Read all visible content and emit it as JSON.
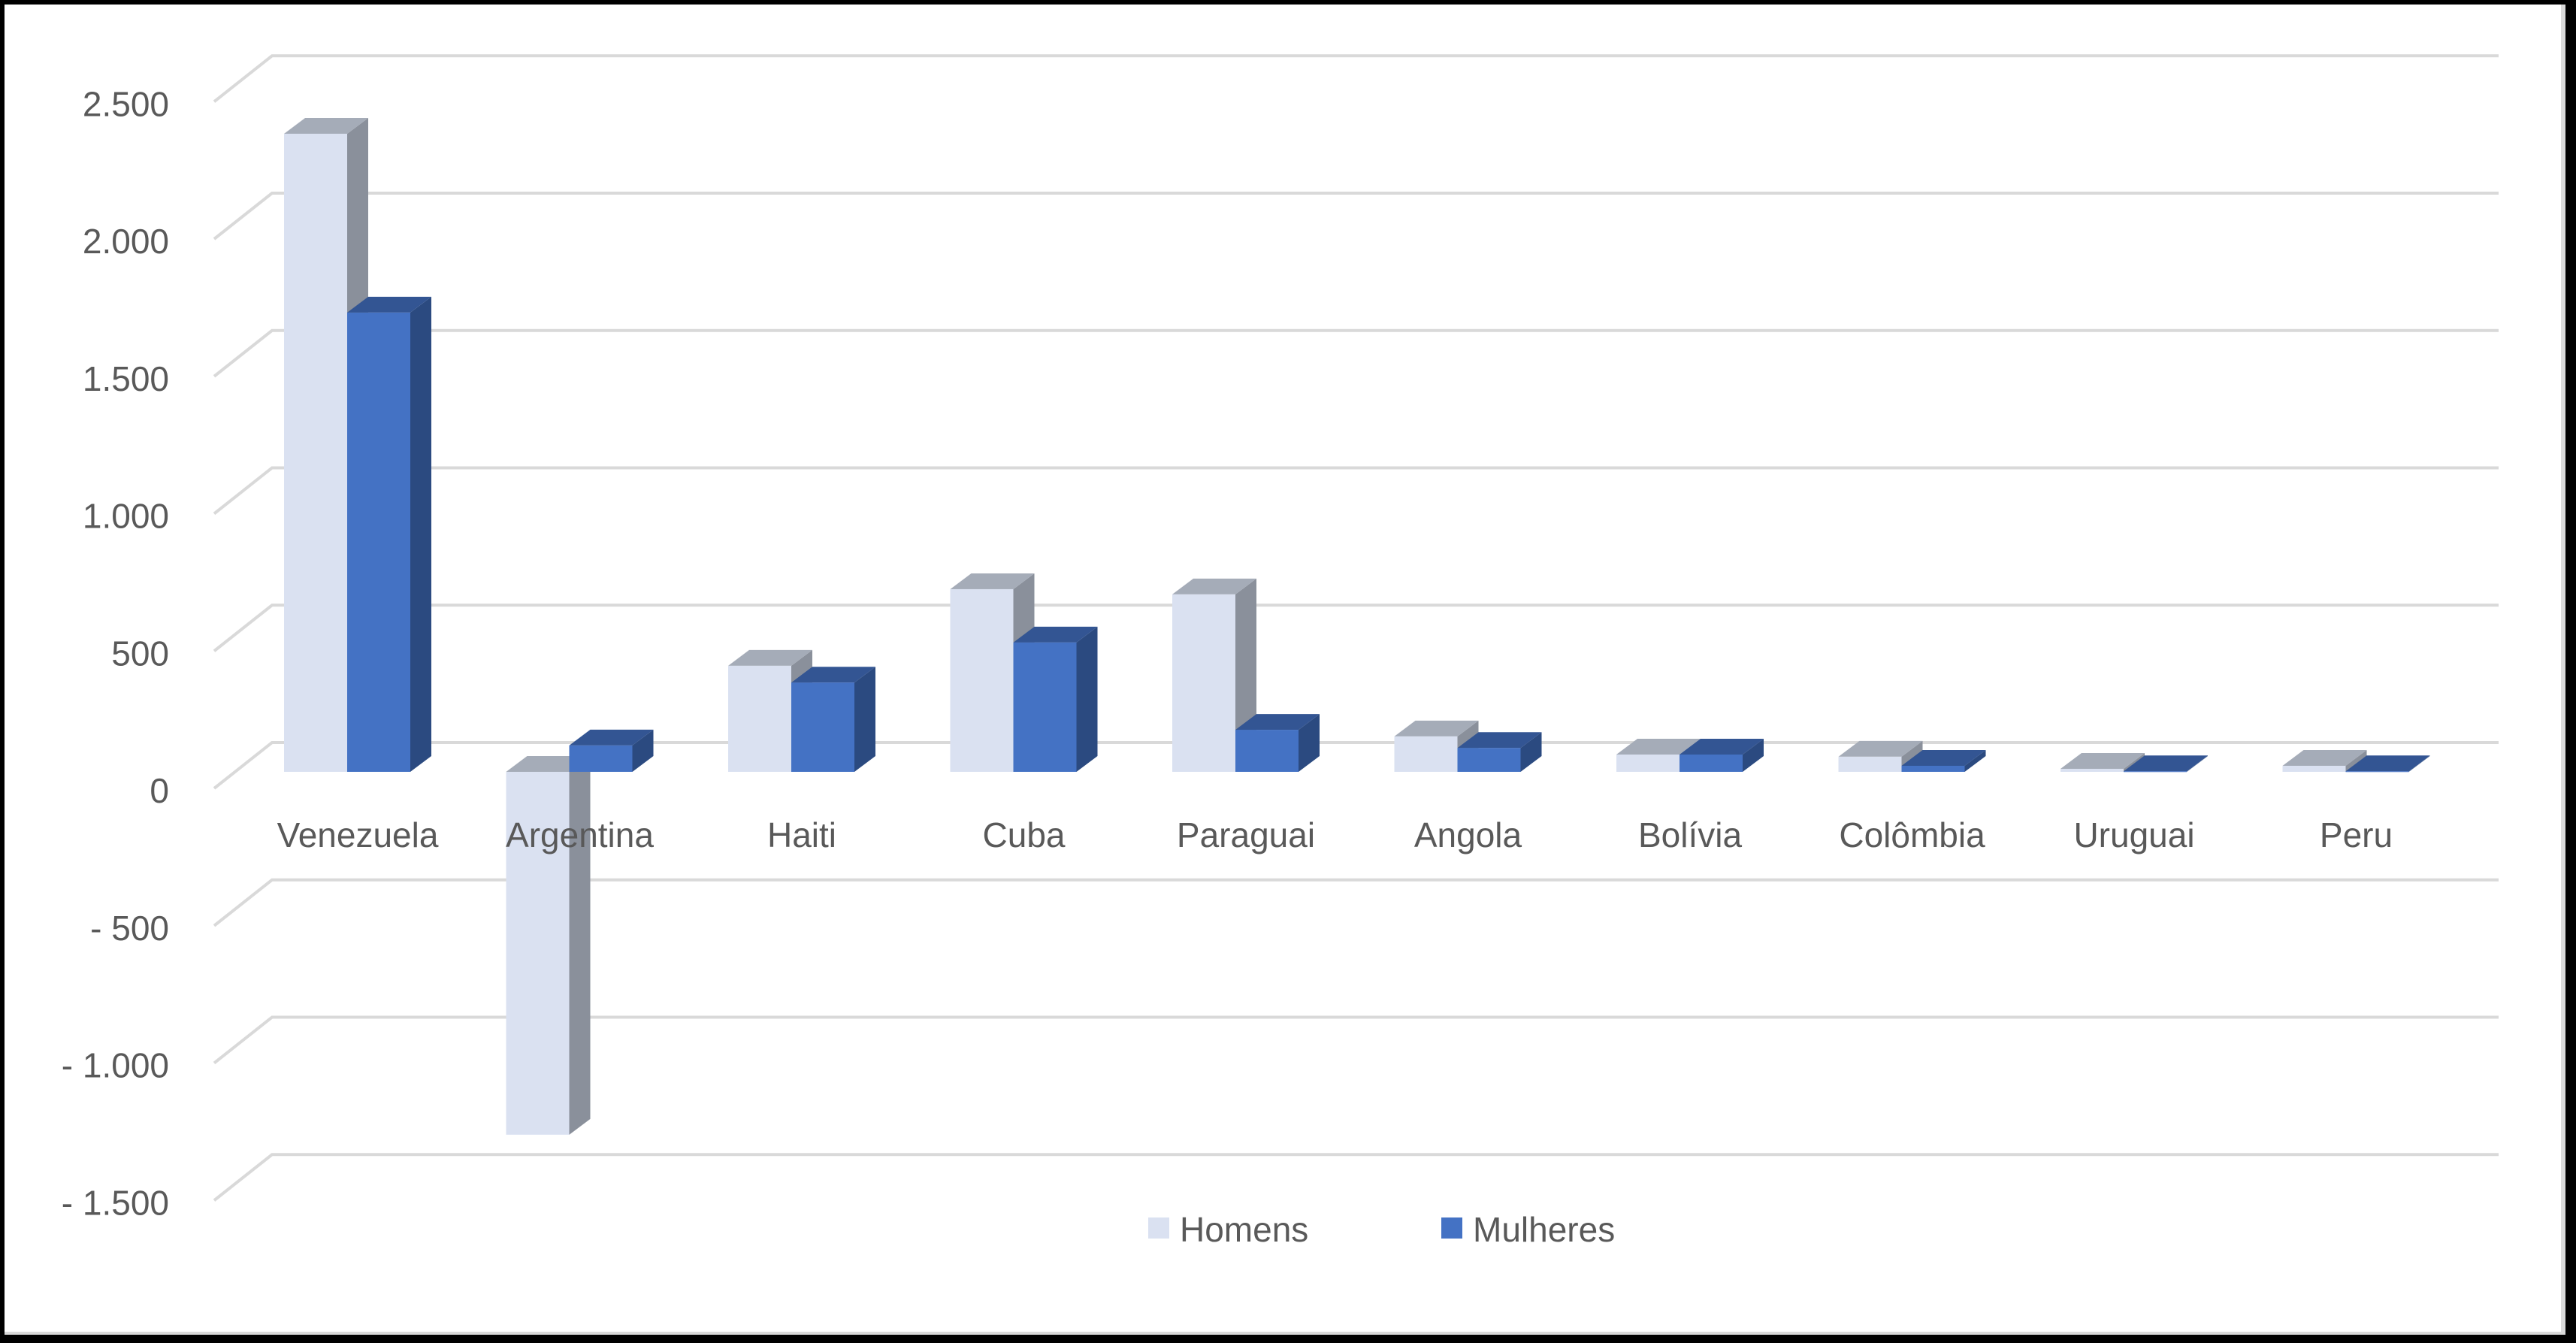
{
  "chart_data": {
    "type": "bar",
    "style": "3d-clustered-column",
    "title": "",
    "xlabel": "",
    "ylabel": "",
    "categories": [
      "Venezuela",
      "Argentina",
      "Haiti",
      "Cuba",
      "Paraguai",
      "Angola",
      "Bolívia",
      "Colômbia",
      "Uruguai",
      "Peru"
    ],
    "series": [
      {
        "name": "Homens",
        "color": "#dae1f1",
        "side_color": "#8a909b",
        "top_color": "#a5acb8",
        "values": [
          2323,
          -1321,
          386,
          665,
          646,
          129,
          63,
          55,
          11,
          22
        ]
      },
      {
        "name": "Mulheres",
        "color": "#4472c4",
        "side_color": "#2b4a80",
        "top_color": "#335593",
        "values": [
          1672,
          96,
          325,
          471,
          153,
          87,
          63,
          22,
          2,
          2
        ]
      }
    ],
    "ylim": [
      -1500,
      2500
    ],
    "yticks": [
      2500,
      2000,
      1500,
      1000,
      500,
      0,
      -500,
      -1000,
      -1500
    ],
    "ytick_labels": [
      "2.500",
      "2.000",
      "1.500",
      "1.000",
      "500",
      "0",
      "- 500",
      "- 1.000",
      "- 1.500"
    ],
    "grid": true,
    "grid_color": "#d9d9d9",
    "legend_position": "bottom"
  },
  "legend": {
    "items": [
      {
        "label": "Homens",
        "color": "#dae1f1"
      },
      {
        "label": "Mulheres",
        "color": "#4472c4"
      }
    ]
  }
}
